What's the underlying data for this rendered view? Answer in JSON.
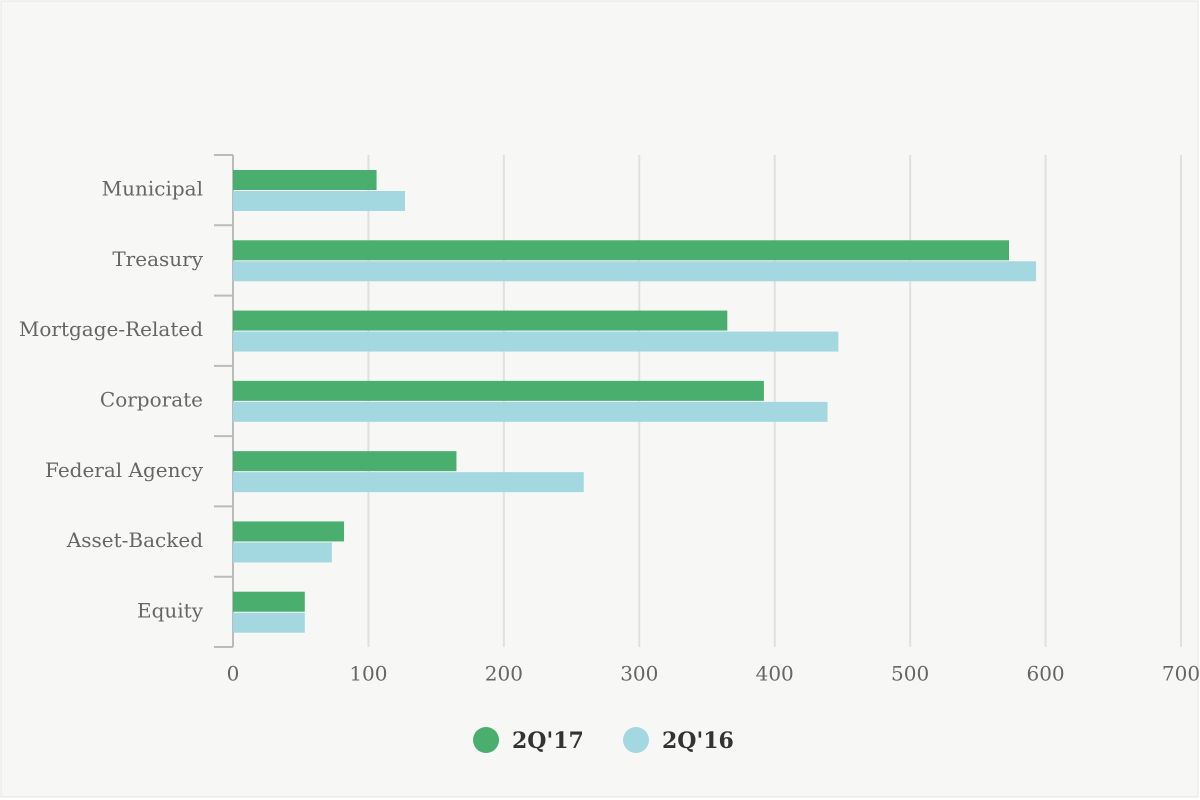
{
  "chart_data": {
    "type": "hbar",
    "categories": [
      "Municipal",
      "Treasury",
      "Mortgage-Related",
      "Corporate",
      "Federal Agency",
      "Asset-Backed",
      "Equity"
    ],
    "series": [
      {
        "name": "2Q'17",
        "color": "#4aae6e",
        "values": [
          106,
          573,
          365,
          392,
          165,
          82,
          53
        ]
      },
      {
        "name": "2Q'16",
        "color": "#a4d8e0",
        "values": [
          127,
          593,
          447,
          439,
          259,
          73,
          53
        ]
      }
    ],
    "xlim": [
      0,
      700
    ],
    "xticks": [
      0,
      100,
      200,
      300,
      400,
      500,
      600,
      700
    ],
    "grid": true
  }
}
